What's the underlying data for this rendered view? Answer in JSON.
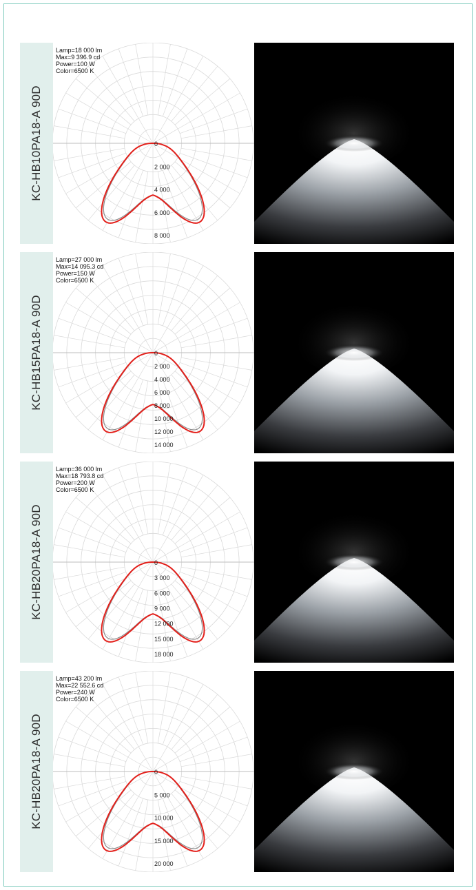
{
  "chart_data": [
    {
      "type": "polar",
      "product": "KC-HB10PA18-A",
      "beam": "90D",
      "info": [
        "Lamp=18 000 lm",
        "Max=9 396.9 cd",
        "Power=100 W",
        "Color=6500 K"
      ],
      "ticks": [
        "0",
        "2 000",
        "4 000",
        "6 000",
        "8 000"
      ],
      "rmax": 9000
    },
    {
      "type": "polar",
      "product": "KC-HB15PA18-A",
      "beam": "90D",
      "info": [
        "Lamp=27 000 lm",
        "Max=14 095.3 cd",
        "Power=150 W",
        "Color=6500 K"
      ],
      "ticks": [
        "0",
        "2 000",
        "4 000",
        "6 000",
        "8 000",
        "10 000",
        "12 000",
        "14 000"
      ],
      "rmax": 14000
    },
    {
      "type": "polar",
      "product": "KC-HB20PA18-A",
      "beam": "90D",
      "info": [
        "Lamp=36 000 lm",
        "Max=18 793.8 cd",
        "Power=200 W",
        "Color=6500 K"
      ],
      "ticks": [
        "0",
        "3 000",
        "6 000",
        "9 000",
        "12 000",
        "15 000",
        "18 000"
      ],
      "rmax": 18000
    },
    {
      "type": "polar",
      "product": "KC-HB20PA18-A",
      "beam": "90D",
      "info": [
        "Lamp=43 200 lm",
        "Max=22 552.6 cd",
        "Power=240 W",
        "Color=6500 K"
      ],
      "ticks": [
        "0",
        "5 000",
        "10 000",
        "15 000",
        "20 000"
      ],
      "rmax": 22500
    }
  ],
  "colors": {
    "curve_primary": "#e3201b",
    "curve_secondary": "#8c8c8c",
    "grid": "#d9d9d9",
    "label_bg": "#e1efec",
    "frame": "#7fcbbd"
  }
}
